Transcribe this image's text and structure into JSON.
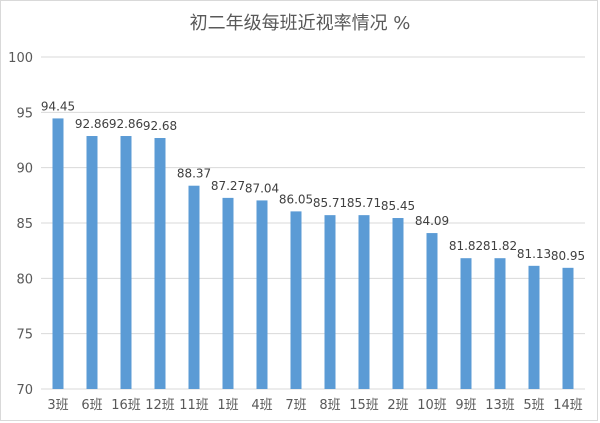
{
  "chart_data": {
    "type": "bar",
    "title": "初二年级每班近视率情况 %",
    "categories": [
      "3班",
      "6班",
      "16班",
      "12班",
      "11班",
      "1班",
      "4班",
      "7班",
      "8班",
      "15班",
      "2班",
      "10班",
      "9班",
      "13班",
      "5班",
      "14班"
    ],
    "values": [
      94.45,
      92.86,
      92.86,
      92.68,
      88.37,
      87.27,
      87.04,
      86.05,
      85.71,
      85.71,
      85.45,
      84.09,
      81.82,
      81.82,
      81.13,
      80.95
    ],
    "data_labels": [
      "94.45",
      "92.86",
      "92.86",
      "92.68",
      "88.37",
      "87.27",
      "87.04",
      "86.05",
      "85.71",
      "85.71",
      "85.45",
      "84.09",
      "81.82",
      "81.82",
      "81.13",
      "80.95"
    ],
    "ylim": [
      70,
      100
    ],
    "yticks": [
      70,
      75,
      80,
      85,
      90,
      95,
      100
    ],
    "xlabel": "",
    "ylabel": "",
    "grid": true,
    "legend": "none",
    "colors": {
      "bar": "#5b9bd5",
      "grid": "#d9d9d9",
      "text": "#595959"
    }
  }
}
